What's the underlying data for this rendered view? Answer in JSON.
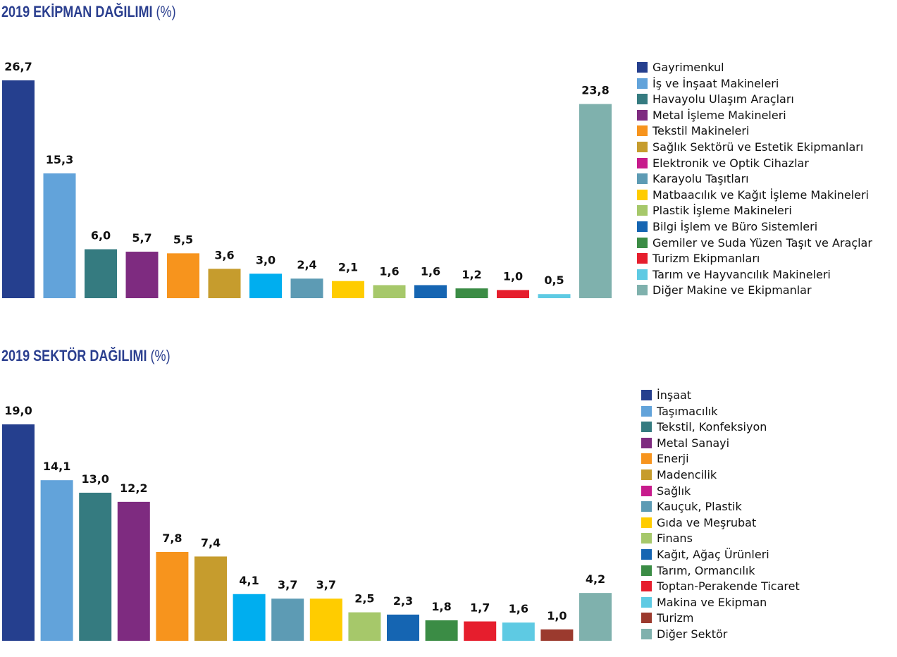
{
  "chart_data": [
    {
      "type": "bar",
      "title": "2019 EKİPMAN DAĞILIMI",
      "title_unit": "(%)",
      "categories": [
        "Gayrimenkul",
        "İş ve İnşaat Makineleri",
        "Havayolu Ulaşım Araçları",
        "Metal İşleme Makineleri",
        "Tekstil Makineleri",
        "Sağlık Sektörü ve Estetik Ekipmanları",
        "Elektronik ve Optik Cihazlar",
        "Karayolu Taşıtları",
        "Matbaacılık ve Kağıt İşleme Makineleri",
        "Plastik İşleme Makineleri",
        "Bilgi İşlem ve Büro Sistemleri",
        "Gemiler ve Suda Yüzen Taşıt ve Araçlar",
        "Turizm Ekipmanları",
        "Tarım ve Hayvancılık Makineleri",
        "Diğer Makine ve Ekipmanlar"
      ],
      "values": [
        26.7,
        15.3,
        6.0,
        5.7,
        5.5,
        3.6,
        3.0,
        2.4,
        2.1,
        1.6,
        1.6,
        1.2,
        1.0,
        0.5,
        23.8
      ],
      "value_labels": [
        "26,7",
        "15,3",
        "6,0",
        "5,7",
        "5,5",
        "3,6",
        "3,0",
        "2,4",
        "2,1",
        "1,6",
        "1,6",
        "1,2",
        "1,0",
        "0,5",
        "23,8"
      ],
      "colors": [
        "#253f8e",
        "#62a3da",
        "#357b80",
        "#7e2b80",
        "#f7941d",
        "#c69c2d",
        "#c71b8c",
        "#5d9bb4",
        "#ffcc00",
        "#a6c86a",
        "#1565b2",
        "#3b8c45",
        "#e61e2d",
        "#5ecae3",
        "#7fb1ad"
      ],
      "bar_colors": [
        "#253f8e",
        "#62a3da",
        "#357b80",
        "#7e2b80",
        "#f7941d",
        "#c69c2d",
        "#00aeef",
        "#5d9bb4",
        "#ffcc00",
        "#a6c86a",
        "#1565b2",
        "#3b8c45",
        "#e61e2d",
        "#5ecae3",
        "#7fb1ad"
      ],
      "legend_position": "right",
      "grid": false
    },
    {
      "type": "bar",
      "title": "2019 SEKTÖR DAĞILIMI",
      "title_unit": "(%)",
      "categories": [
        "İnşaat",
        "Taşımacılık",
        "Tekstil, Konfeksiyon",
        "Metal Sanayi",
        "Enerji",
        "Madencilik",
        "Sağlık",
        "Kauçuk, Plastik",
        "Gıda ve Meşrubat",
        "Finans",
        "Kağıt, Ağaç Ürünleri",
        "Tarım, Ormancılık",
        "Toptan-Perakende Ticaret",
        "Makina ve Ekipman",
        "Turizm",
        "Diğer Sektör"
      ],
      "values": [
        19.0,
        14.1,
        13.0,
        12.2,
        7.8,
        7.4,
        4.1,
        3.7,
        3.7,
        2.5,
        2.3,
        1.8,
        1.7,
        1.6,
        1.0,
        4.2
      ],
      "value_labels": [
        "19,0",
        "14,1",
        "13,0",
        "12,2",
        "7,8",
        "7,4",
        "4,1",
        "3,7",
        "3,7",
        "2,5",
        "2,3",
        "1,8",
        "1,7",
        "1,6",
        "1,0",
        "4,2"
      ],
      "colors": [
        "#253f8e",
        "#62a3da",
        "#357b80",
        "#7e2b80",
        "#f7941d",
        "#c69c2d",
        "#c71b8c",
        "#5d9bb4",
        "#ffcc00",
        "#a6c86a",
        "#1565b2",
        "#3b8c45",
        "#e61e2d",
        "#5ecae3",
        "#9b3a2e",
        "#7fb1ad"
      ],
      "bar_colors": [
        "#253f8e",
        "#62a3da",
        "#357b80",
        "#7e2b80",
        "#f7941d",
        "#c69c2d",
        "#00aeef",
        "#5d9bb4",
        "#ffcc00",
        "#a6c86a",
        "#1565b2",
        "#3b8c45",
        "#e61e2d",
        "#5ecae3",
        "#9b3a2e",
        "#7fb1ad"
      ],
      "legend_position": "right",
      "grid": false
    }
  ]
}
